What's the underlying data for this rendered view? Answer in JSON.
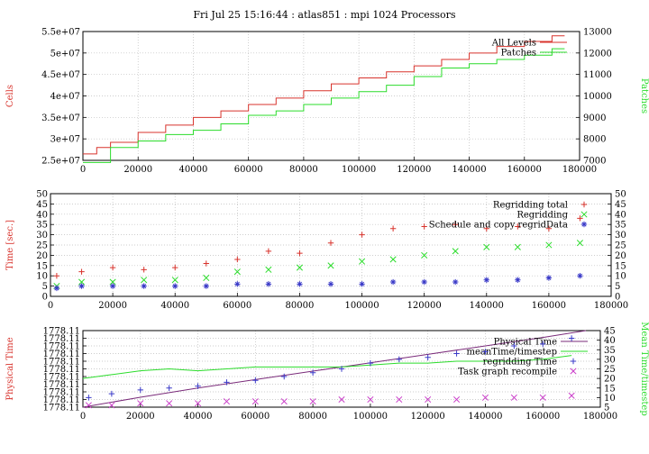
{
  "title": "Fri Jul 25 15:16:44 : atlas851 : mpi 1024 Processors",
  "colors": {
    "red": "#d8332c",
    "green": "#2bdc2b",
    "blue": "#3a3ac8",
    "magenta": "#c93ac8",
    "purple": "#7a2b7a",
    "axis": "#000000",
    "grid": "#bdbdbd"
  },
  "chart_data": [
    {
      "type": "line",
      "grid": true,
      "legend_position": "top-right",
      "xlim": [
        0,
        180000
      ],
      "xticks": [
        0,
        20000,
        40000,
        60000,
        80000,
        100000,
        120000,
        140000,
        160000,
        180000
      ],
      "ylabel": "Cells",
      "ylim": [
        25000000,
        55000000
      ],
      "yticks": [
        25000000,
        30000000,
        35000000,
        40000000,
        45000000,
        50000000,
        55000000
      ],
      "ytick_labels": [
        "2.5e+07",
        "3e+07",
        "3.5e+07",
        "4e+07",
        "4.5e+07",
        "5e+07",
        "5.5e+07"
      ],
      "y2label": "Patches",
      "y2lim": [
        7000,
        13000
      ],
      "y2ticks": [
        7000,
        8000,
        9000,
        10000,
        11000,
        12000,
        13000
      ],
      "series": [
        {
          "name": "All Levels",
          "axis": "y",
          "color": "#d8332c",
          "step": true,
          "x": [
            0,
            5000,
            10000,
            20000,
            30000,
            40000,
            50000,
            60000,
            70000,
            80000,
            90000,
            100000,
            110000,
            120000,
            130000,
            140000,
            150000,
            160000,
            170000
          ],
          "y": [
            26500000,
            28000000,
            29200000,
            31500000,
            33200000,
            35000000,
            36500000,
            38000000,
            39500000,
            41200000,
            42800000,
            44200000,
            45600000,
            47000000,
            48500000,
            50000000,
            51500000,
            52700000,
            54000000
          ]
        },
        {
          "name": "Patches",
          "axis": "y2",
          "color": "#2bdc2b",
          "step": true,
          "x": [
            0,
            10000,
            20000,
            30000,
            40000,
            50000,
            60000,
            70000,
            80000,
            90000,
            100000,
            110000,
            120000,
            130000,
            140000,
            150000,
            160000,
            170000
          ],
          "y": [
            6900,
            7600,
            7900,
            8200,
            8400,
            8700,
            9100,
            9300,
            9600,
            9900,
            10200,
            10500,
            10900,
            11300,
            11500,
            11700,
            11900,
            12200
          ]
        }
      ]
    },
    {
      "type": "scatter",
      "grid": true,
      "legend_position": "top-right",
      "xlim": [
        0,
        180000
      ],
      "xticks": [
        0,
        20000,
        40000,
        60000,
        80000,
        100000,
        120000,
        140000,
        160000,
        180000
      ],
      "ylabel": "Time [sec.]",
      "ylim": [
        0,
        50
      ],
      "yticks": [
        0,
        5,
        10,
        15,
        20,
        25,
        30,
        35,
        40,
        45,
        50
      ],
      "y2ticks": [
        0,
        5,
        10,
        15,
        20,
        25,
        30,
        35,
        40,
        45,
        50
      ],
      "series": [
        {
          "name": "Regridding total",
          "marker": "+",
          "color": "#d8332c",
          "x": [
            2000,
            10000,
            20000,
            30000,
            40000,
            50000,
            60000,
            70000,
            80000,
            90000,
            100000,
            110000,
            120000,
            130000,
            140000,
            150000,
            160000,
            170000
          ],
          "y": [
            10,
            12,
            14,
            13,
            14,
            16,
            18,
            22,
            21,
            26,
            30,
            33,
            34,
            35,
            33,
            34,
            33,
            38
          ]
        },
        {
          "name": "Regridding",
          "marker": "x",
          "color": "#2bdc2b",
          "x": [
            2000,
            10000,
            20000,
            30000,
            40000,
            50000,
            60000,
            70000,
            80000,
            90000,
            100000,
            110000,
            120000,
            130000,
            140000,
            150000,
            160000,
            170000
          ],
          "y": [
            5,
            7,
            7,
            8,
            8,
            9,
            12,
            13,
            14,
            15,
            17,
            18,
            20,
            22,
            24,
            24,
            25,
            26
          ]
        },
        {
          "name": "Schedule and copy regridData",
          "marker": "*",
          "color": "#3a3ac8",
          "x": [
            2000,
            10000,
            20000,
            30000,
            40000,
            50000,
            60000,
            70000,
            80000,
            90000,
            100000,
            110000,
            120000,
            130000,
            140000,
            150000,
            160000,
            170000
          ],
          "y": [
            4,
            5,
            5,
            5,
            5,
            5,
            6,
            6,
            6,
            6,
            6,
            7,
            7,
            7,
            8,
            8,
            9,
            10
          ]
        }
      ]
    },
    {
      "type": "line",
      "grid": true,
      "legend_position": "top-right",
      "xlim": [
        0,
        180000
      ],
      "xticks": [
        0,
        20000,
        40000,
        60000,
        80000,
        100000,
        120000,
        140000,
        160000,
        180000
      ],
      "ylabel": "Physical Time",
      "ytick_labels": [
        "1778.11",
        "1778.11",
        "1778.11",
        "1778.11",
        "1778.11",
        "1778.11",
        "1778.11",
        "1778.11",
        "1778.11",
        "1778.11",
        "1778.11"
      ],
      "y2label": "Mean Time/timestep",
      "y2lim": [
        5,
        45
      ],
      "y2ticks": [
        5,
        10,
        15,
        20,
        25,
        30,
        35,
        40,
        45
      ],
      "series": [
        {
          "name": "Physical Time",
          "axis": "y",
          "color": "#7a2b7a",
          "x": [
            0,
            20000,
            40000,
            60000,
            80000,
            100000,
            120000,
            140000,
            160000,
            175000
          ],
          "y": [
            0,
            0.13,
            0.25,
            0.36,
            0.47,
            0.58,
            0.69,
            0.8,
            0.91,
            1.0
          ]
        },
        {
          "name": "meanTime/timestep",
          "axis": "y2",
          "color": "#2bdc2b",
          "x": [
            0,
            10000,
            20000,
            30000,
            40000,
            50000,
            60000,
            70000,
            80000,
            90000,
            100000,
            110000,
            120000,
            130000,
            140000,
            150000,
            160000,
            170000
          ],
          "y": [
            20,
            22,
            24,
            25,
            24,
            25,
            26,
            26,
            26,
            26,
            27,
            28,
            28,
            29,
            29,
            29,
            30,
            32
          ]
        },
        {
          "name": "regridding Time",
          "axis": "y2",
          "marker": "+",
          "color": "#3a3ac8",
          "x": [
            2000,
            10000,
            20000,
            30000,
            40000,
            50000,
            60000,
            70000,
            80000,
            90000,
            100000,
            110000,
            120000,
            130000,
            140000,
            150000,
            160000,
            170000
          ],
          "y": [
            10,
            12,
            14,
            15,
            16,
            18,
            19,
            21,
            23,
            25,
            28,
            30,
            31,
            33,
            34,
            37,
            38,
            41
          ]
        },
        {
          "name": "Task graph recompile",
          "axis": "y2",
          "marker": "x",
          "color": "#c93ac8",
          "x": [
            2000,
            10000,
            20000,
            30000,
            40000,
            50000,
            60000,
            70000,
            80000,
            90000,
            100000,
            110000,
            120000,
            130000,
            140000,
            150000,
            160000,
            170000
          ],
          "y": [
            6,
            6,
            7,
            7,
            7,
            8,
            8,
            8,
            8,
            9,
            9,
            9,
            9,
            9,
            10,
            10,
            10,
            11
          ]
        }
      ]
    }
  ]
}
